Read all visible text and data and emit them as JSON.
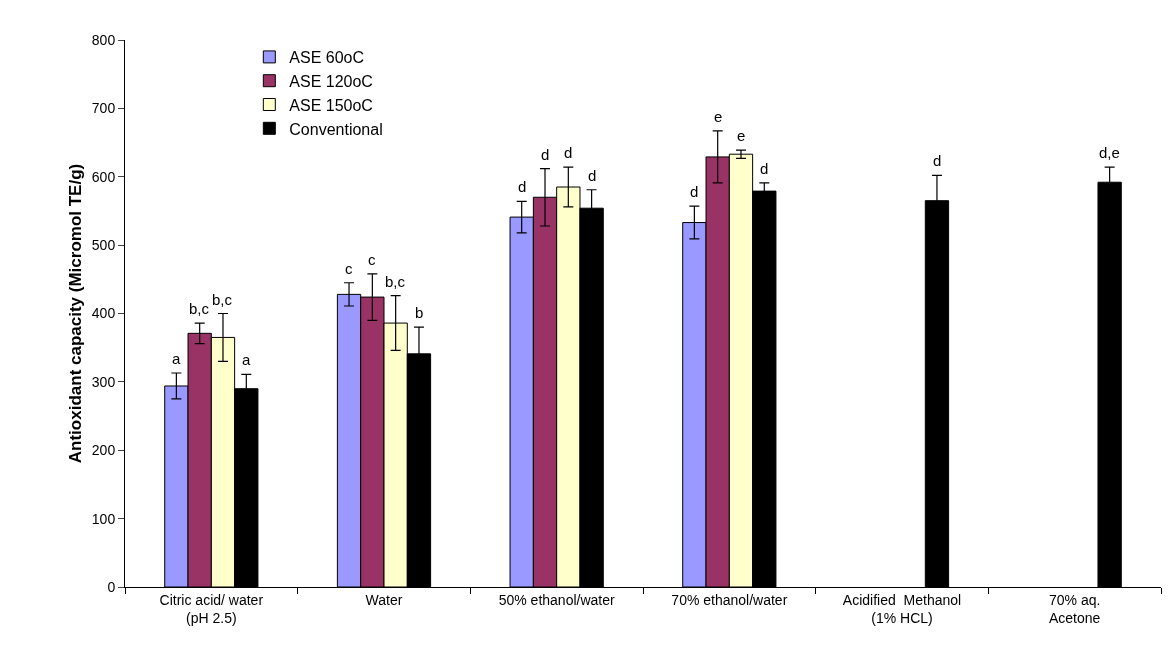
{
  "chart_data": {
    "type": "bar",
    "ylabel": "Antioxidant capacity (Micromol TE/g)",
    "categories": [
      "Citric acid/ water\n(pH 2.5)",
      "Water",
      "50% ethanol/water",
      "70% ethanol/water",
      "Acidified  Methanol\n(1% HCL)",
      "70% aq.\nAcetone"
    ],
    "series": [
      {
        "name": "ASE 60oC",
        "color": "#9999ff",
        "values": [
          294,
          428,
          541,
          533,
          null,
          null
        ],
        "errors": [
          19,
          17,
          23,
          24,
          null,
          null
        ],
        "value_labels": [
          "a",
          "c",
          "d",
          "d",
          null,
          null
        ]
      },
      {
        "name": "ASE 120oC",
        "color": "#993366",
        "values": [
          371,
          424,
          570,
          629,
          null,
          null
        ],
        "errors": [
          15,
          34,
          42,
          38,
          null,
          null
        ],
        "value_labels": [
          "b,c",
          "c",
          "d",
          "e",
          null,
          null
        ]
      },
      {
        "name": "ASE 150oC",
        "color": "#ffffcc",
        "values": [
          365,
          386,
          585,
          633,
          null,
          null
        ],
        "errors": [
          35,
          40,
          29,
          6,
          null,
          null
        ],
        "value_labels": [
          "b,c",
          "b,c",
          "d",
          "e",
          null,
          null
        ]
      },
      {
        "name": "Conventional",
        "color": "#000000",
        "values": [
          290,
          341,
          554,
          579,
          565,
          592
        ],
        "errors": [
          21,
          39,
          27,
          12,
          37,
          22
        ],
        "value_labels": [
          "a",
          "b",
          "d",
          "d",
          "d",
          "d,e"
        ]
      }
    ],
    "ylim": [
      0,
      800
    ],
    "yticks": [
      0,
      100,
      200,
      300,
      400,
      500,
      600,
      700,
      800
    ],
    "grid": false,
    "legend": "top left"
  }
}
